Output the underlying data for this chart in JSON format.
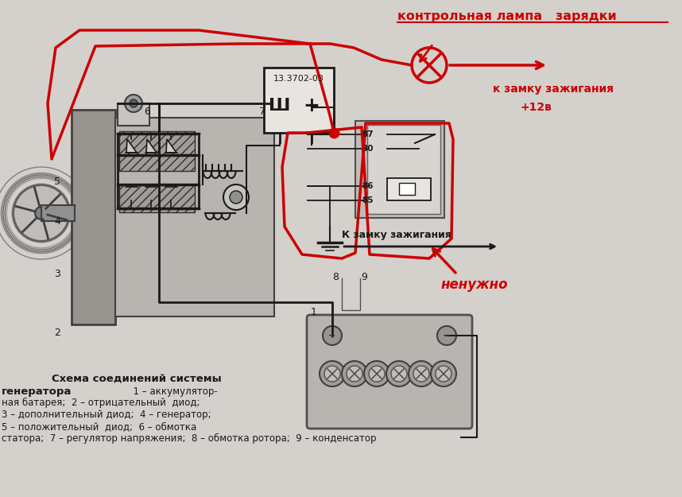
{
  "bg_color": "#d0ccc8",
  "light_gray": "#c8c4c0",
  "mid_gray": "#b0aca8",
  "dark_gray": "#888480",
  "very_light_gray": "#e0dcd8",
  "white_ish": "#f0eeec",
  "red_color": "#cc0000",
  "black_color": "#1a1a1a",
  "annotations": {
    "control_lamp": "контрольная лампа   зарядки",
    "ignition_lock": "к замку зажигания",
    "plus12v": "+12в",
    "not_needed": "ненужно",
    "schema_title": "Схема соединений системы",
    "generator_label": "генератора",
    "to_ignition": "К замку зажигания"
  },
  "relay_labels": [
    "87",
    "30",
    "86",
    "85"
  ],
  "voltage_reg_label": "13.3702-03",
  "voltage_reg_terminals": [
    "Ш",
    "+"
  ]
}
